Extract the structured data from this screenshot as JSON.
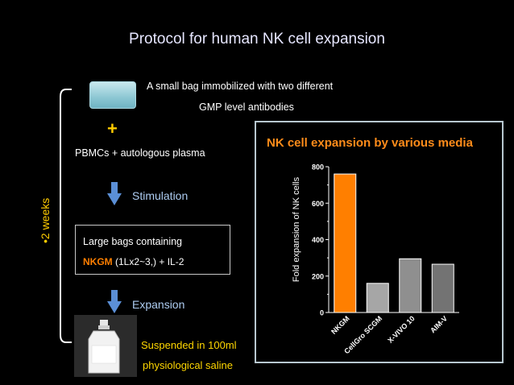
{
  "title": "Protocol for human NK cell expansion",
  "small_bag_text": {
    "line1": "A small bag immobilized with two different",
    "line2": "GMP level antibodies"
  },
  "plus_symbol": "+",
  "pbmc_text": "PBMCs + autologous plasma",
  "stimulation_label": "Stimulation",
  "large_bag": {
    "line1": "Large bags containing",
    "nkgm": "NKGM",
    "rest": " (1Lx2~3,) + IL-2"
  },
  "expansion_label": "Expansion",
  "saline_text": {
    "line1": "Suspended in 100ml",
    "line2": "physiological saline"
  },
  "duration_label": "•2 weeks",
  "colors": {
    "title": "#e6e6ff",
    "accent_yellow": "#ffcc00",
    "accent_orange": "#ff7f00",
    "step_blue": "#aecdf2",
    "arrow_blue": "#5b8fd6"
  },
  "icons": [
    "down-arrow-icon",
    "bracket-icon",
    "saline-bottle-icon",
    "small-bag-icon"
  ],
  "chart_data": {
    "type": "bar",
    "title": "NK cell expansion by various media",
    "ylabel": "Fold expansion of NK cells",
    "xlabel": "",
    "categories": [
      "NKGM",
      "CellGro SCGM",
      "X-VIVO 10",
      "AIM-V"
    ],
    "values": [
      760,
      160,
      295,
      265
    ],
    "ylim": [
      0,
      800
    ],
    "yticks": [
      0,
      200,
      400,
      600,
      800
    ],
    "bar_colors": [
      "#ff7f00",
      "#a6a6a6",
      "#8f8f8f",
      "#737373"
    ],
    "grid": false
  }
}
